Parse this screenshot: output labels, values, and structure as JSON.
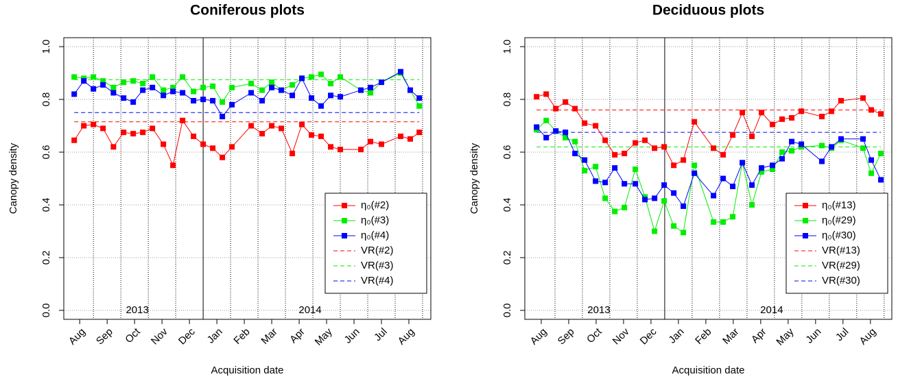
{
  "chart_data": [
    {
      "type": "line",
      "title": "Coniferous plots",
      "x_label": "Acquisition date",
      "y_label": "Canopy density",
      "xlim": [
        -0.08,
        13.3
      ],
      "ylim": [
        -0.034,
        1.034
      ],
      "xticks": [
        {
          "value": 0.5,
          "label": "Aug"
        },
        {
          "value": 1.5,
          "label": "Sep"
        },
        {
          "value": 2.5,
          "label": "Oct"
        },
        {
          "value": 3.5,
          "label": "Nov"
        },
        {
          "value": 4.5,
          "label": "Dec"
        },
        {
          "value": 5.5,
          "label": "Jan"
        },
        {
          "value": 6.5,
          "label": "Feb"
        },
        {
          "value": 7.5,
          "label": "Mar"
        },
        {
          "value": 8.5,
          "label": "Apr"
        },
        {
          "value": 9.5,
          "label": "May"
        },
        {
          "value": 10.5,
          "label": "Jun"
        },
        {
          "value": 11.5,
          "label": "Jul"
        },
        {
          "value": 12.5,
          "label": "Aug"
        }
      ],
      "yticks": [
        {
          "value": 0,
          "label": "0.0"
        },
        {
          "value": 0.2,
          "label": "0.2"
        },
        {
          "value": 0.4,
          "label": "0.4"
        },
        {
          "value": 0.6,
          "label": "0.6"
        },
        {
          "value": 0.8,
          "label": "0.8"
        },
        {
          "value": 1,
          "label": "1.0"
        }
      ],
      "xgrid": [
        1,
        2,
        3,
        4,
        6,
        7,
        8,
        9,
        10,
        11,
        12,
        13
      ],
      "year_line": 5,
      "grid": true,
      "legend": "bottom-right",
      "annotations": [
        {
          "x": 2.6,
          "y": 0.0,
          "text": "2013"
        },
        {
          "x": 8.9,
          "y": 0.0,
          "text": "2014"
        }
      ],
      "x": [
        0.3,
        0.65,
        1.0,
        1.35,
        1.73,
        2.1,
        2.45,
        2.8,
        3.15,
        3.55,
        3.9,
        4.25,
        4.65,
        5.0,
        5.35,
        5.7,
        6.05,
        6.75,
        7.15,
        7.5,
        7.85,
        8.25,
        8.6,
        8.95,
        9.3,
        9.65,
        10.0,
        10.75,
        11.1,
        11.5,
        12.2,
        12.55,
        12.88
      ],
      "series": [
        {
          "name": "η₀(#2)",
          "color": "#ff0000",
          "values": [
            0.645,
            0.7,
            0.705,
            0.69,
            0.62,
            0.675,
            0.67,
            0.675,
            0.69,
            0.63,
            0.55,
            0.72,
            0.66,
            0.63,
            0.615,
            0.58,
            0.62,
            0.7,
            0.67,
            0.7,
            0.69,
            0.595,
            0.705,
            0.665,
            0.66,
            0.62,
            0.61,
            0.61,
            0.64,
            0.63,
            0.66,
            0.65,
            0.675
          ]
        },
        {
          "name": "η₀(#3)",
          "color": "#00ee00",
          "values": [
            0.885,
            0.88,
            0.885,
            0.87,
            0.845,
            0.865,
            0.87,
            0.86,
            0.885,
            0.835,
            0.845,
            0.885,
            0.83,
            0.845,
            0.85,
            0.79,
            0.845,
            0.86,
            0.835,
            0.865,
            0.835,
            0.855,
            0.88,
            0.885,
            0.895,
            0.86,
            0.885,
            0.835,
            0.825,
            0.865,
            0.9,
            0.835,
            0.775
          ]
        },
        {
          "name": "η₀(#4)",
          "color": "#0000ff",
          "values": [
            0.82,
            0.87,
            0.84,
            0.855,
            0.825,
            0.805,
            0.79,
            0.835,
            0.845,
            0.815,
            0.83,
            0.825,
            0.795,
            0.8,
            0.795,
            0.735,
            0.78,
            0.825,
            0.795,
            0.845,
            0.835,
            0.815,
            0.88,
            0.805,
            0.775,
            0.815,
            0.81,
            0.835,
            0.845,
            0.865,
            0.905,
            0.835,
            0.805
          ]
        }
      ],
      "reference_lines": [
        {
          "name": "VR(#2)",
          "color": "#ff0000",
          "value": 0.715
        },
        {
          "name": "VR(#3)",
          "color": "#00ee00",
          "value": 0.875
        },
        {
          "name": "VR(#4)",
          "color": "#0000ff",
          "value": 0.75
        }
      ]
    },
    {
      "type": "line",
      "title": "Deciduous plots",
      "x_label": "Acquisition date",
      "y_label": "Canopy density",
      "xlim": [
        -0.1,
        13.28
      ],
      "ylim": [
        -0.034,
        1.034
      ],
      "xticks": [
        {
          "value": 0.5,
          "label": "Aug"
        },
        {
          "value": 1.5,
          "label": "Sep"
        },
        {
          "value": 2.5,
          "label": "Oct"
        },
        {
          "value": 3.5,
          "label": "Nov"
        },
        {
          "value": 4.5,
          "label": "Dec"
        },
        {
          "value": 5.5,
          "label": "Jan"
        },
        {
          "value": 6.5,
          "label": "Feb"
        },
        {
          "value": 7.5,
          "label": "Mar"
        },
        {
          "value": 8.5,
          "label": "Apr"
        },
        {
          "value": 9.5,
          "label": "May"
        },
        {
          "value": 10.5,
          "label": "Jun"
        },
        {
          "value": 11.5,
          "label": "Jul"
        },
        {
          "value": 12.5,
          "label": "Aug"
        }
      ],
      "yticks": [
        {
          "value": 0,
          "label": "0.0"
        },
        {
          "value": 0.2,
          "label": "0.2"
        },
        {
          "value": 0.4,
          "label": "0.4"
        },
        {
          "value": 0.6,
          "label": "0.6"
        },
        {
          "value": 0.8,
          "label": "0.8"
        },
        {
          "value": 1,
          "label": "1.0"
        }
      ],
      "xgrid": [
        1,
        2,
        3,
        4,
        6,
        7,
        8,
        9,
        10,
        11,
        12,
        13
      ],
      "year_line": 5,
      "grid": true,
      "legend": "bottom-right",
      "annotations": [
        {
          "x": 2.6,
          "y": 0.0,
          "text": "2013"
        },
        {
          "x": 8.9,
          "y": 0.0,
          "text": "2014"
        }
      ],
      "x": [
        0.33,
        0.68,
        1.03,
        1.38,
        1.73,
        2.08,
        2.48,
        2.83,
        3.18,
        3.53,
        3.93,
        4.28,
        4.63,
        4.98,
        5.33,
        5.68,
        6.08,
        6.78,
        7.13,
        7.48,
        7.83,
        8.18,
        8.53,
        8.93,
        9.28,
        9.63,
        9.98,
        10.73,
        11.08,
        11.43,
        12.23,
        12.53,
        12.88
      ],
      "series": [
        {
          "name": "η₀(#13)",
          "color": "#ff0000",
          "values": [
            0.81,
            0.82,
            0.765,
            0.79,
            0.765,
            0.71,
            0.7,
            0.645,
            0.59,
            0.595,
            0.635,
            0.645,
            0.615,
            0.62,
            0.55,
            0.57,
            0.715,
            0.615,
            0.59,
            0.665,
            0.75,
            0.66,
            0.75,
            0.705,
            0.725,
            0.73,
            0.755,
            0.735,
            0.755,
            0.795,
            0.805,
            0.76,
            0.745
          ]
        },
        {
          "name": "η₀(#29)",
          "color": "#00ee00",
          "values": [
            0.685,
            0.72,
            0.68,
            0.655,
            0.64,
            0.53,
            0.545,
            0.425,
            0.375,
            0.39,
            0.535,
            0.43,
            0.3,
            0.415,
            0.32,
            0.295,
            0.55,
            0.335,
            0.335,
            0.355,
            0.56,
            0.4,
            0.525,
            0.535,
            0.6,
            0.605,
            0.62,
            0.625,
            0.615,
            0.645,
            0.615,
            0.52,
            0.595
          ]
        },
        {
          "name": "η₀(#30)",
          "color": "#0000ff",
          "values": [
            0.695,
            0.655,
            0.68,
            0.675,
            0.595,
            0.57,
            0.49,
            0.485,
            0.54,
            0.48,
            0.48,
            0.42,
            0.425,
            0.475,
            0.445,
            0.395,
            0.52,
            0.435,
            0.5,
            0.47,
            0.56,
            0.475,
            0.54,
            0.55,
            0.575,
            0.64,
            0.63,
            0.565,
            0.62,
            0.65,
            0.65,
            0.57,
            0.495
          ]
        }
      ],
      "reference_lines": [
        {
          "name": "VR(#13)",
          "color": "#ff0000",
          "value": 0.76
        },
        {
          "name": "VR(#29)",
          "color": "#00ee00",
          "value": 0.62
        },
        {
          "name": "VR(#30)",
          "color": "#0000ff",
          "value": 0.675
        }
      ]
    }
  ]
}
